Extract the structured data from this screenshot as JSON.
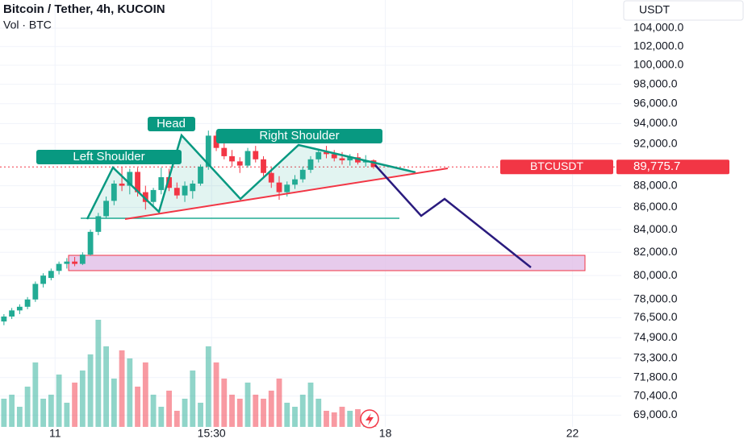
{
  "chart_data": {
    "type": "candlestick",
    "title": "Bitcoin / Tether, 4h, KUCOIN",
    "subtitle": "Vol · BTC",
    "currency": "USDT",
    "log_scale": true,
    "grid": true,
    "up_color": "#22ab94",
    "down_color": "#f23645",
    "x": [
      0,
      1,
      2,
      3,
      4,
      5,
      6,
      7,
      8,
      9,
      10,
      11,
      12,
      13,
      14,
      15,
      16,
      17,
      18,
      19,
      20,
      21,
      22,
      23,
      24,
      25,
      26,
      27,
      28,
      29,
      30,
      31,
      32,
      33,
      34,
      35,
      36,
      37,
      38,
      39,
      40,
      41,
      42,
      43,
      44,
      45,
      46,
      47
    ],
    "open": [
      76200,
      76600,
      77100,
      77400,
      78000,
      79300,
      79800,
      80400,
      81000,
      81200,
      81000,
      81800,
      83800,
      85200,
      86600,
      88200,
      88000,
      89300,
      87400,
      86500,
      87600,
      88800,
      87800,
      87100,
      87500,
      88200,
      89800,
      92800,
      91600,
      90800,
      90300,
      89900,
      91300,
      90500,
      89200,
      88300,
      87400,
      88100,
      88600,
      89500,
      90500,
      91200,
      91000,
      90600,
      90400,
      90700,
      90200,
      90400
    ],
    "high": [
      76800,
      77300,
      77600,
      78200,
      79500,
      80200,
      80600,
      81200,
      81500,
      81600,
      82000,
      84000,
      85500,
      87000,
      88500,
      89800,
      89600,
      89700,
      88000,
      87800,
      89700,
      89600,
      88300,
      88400,
      88500,
      90000,
      93300,
      93200,
      92200,
      91400,
      90700,
      91600,
      91800,
      90800,
      89700,
      88900,
      88400,
      89000,
      89800,
      90800,
      91500,
      91800,
      91400,
      91200,
      91000,
      91100,
      90900,
      90500
    ],
    "low": [
      75900,
      76400,
      76800,
      77200,
      77800,
      79000,
      79600,
      80100,
      80600,
      80800,
      80900,
      81700,
      83500,
      85000,
      86200,
      87500,
      87200,
      87000,
      85800,
      86000,
      87200,
      87500,
      86800,
      86500,
      86800,
      88000,
      89500,
      91300,
      90500,
      89800,
      89200,
      89700,
      90200,
      88900,
      87800,
      86700,
      87000,
      87700,
      88300,
      89200,
      90200,
      90600,
      90300,
      90000,
      89900,
      90000,
      89800,
      89600
    ],
    "close": [
      76600,
      77100,
      77400,
      78000,
      79300,
      80000,
      80400,
      81000,
      81200,
      81000,
      81800,
      83800,
      85200,
      86600,
      88200,
      88000,
      89300,
      87400,
      86500,
      87600,
      88800,
      87800,
      87100,
      88000,
      88200,
      89800,
      92800,
      91600,
      90800,
      90300,
      89900,
      91300,
      90500,
      89200,
      88300,
      87400,
      88100,
      88600,
      89500,
      90500,
      91200,
      91000,
      90600,
      90400,
      90700,
      90200,
      90400,
      89775.7
    ],
    "volume": [
      1400,
      1600,
      1000,
      2000,
      3200,
      1400,
      1600,
      2600,
      1200,
      2200,
      2800,
      3600,
      5320,
      4000,
      2400,
      3800,
      3400,
      2000,
      3200,
      1600,
      1000,
      1800,
      800,
      1400,
      2800,
      1200,
      4000,
      3200,
      2400,
      1600,
      1400,
      2200,
      1600,
      1400,
      1800,
      2400,
      1200,
      1000,
      1600,
      2200,
      1400,
      800,
      720,
      1000,
      800,
      880,
      600,
      480
    ],
    "xlim": [
      -0.5,
      78.5
    ],
    "xticks": [
      {
        "value": 6.5,
        "label": "11"
      },
      {
        "value": 26.4,
        "label": "15:30"
      },
      {
        "value": 48.5,
        "label": "18"
      },
      {
        "value": 72.3,
        "label": "22"
      }
    ],
    "ylim": [
      68140,
      107160
    ],
    "yticks": [
      {
        "value": 104000,
        "label": "104,000.0"
      },
      {
        "value": 102000,
        "label": "102,000.0"
      },
      {
        "value": 100000,
        "label": "100,000.0"
      },
      {
        "value": 98000,
        "label": "98,000.0"
      },
      {
        "value": 96000,
        "label": "96,000.0"
      },
      {
        "value": 94000,
        "label": "94,000.0"
      },
      {
        "value": 92000,
        "label": "92,000.0"
      },
      {
        "value": 88000,
        "label": "88,000.0"
      },
      {
        "value": 86000,
        "label": "86,000.0"
      },
      {
        "value": 84000,
        "label": "84,000.0"
      },
      {
        "value": 82000,
        "label": "82,000.0"
      },
      {
        "value": 80000,
        "label": "80,000.0"
      },
      {
        "value": 78000,
        "label": "78,000.0"
      },
      {
        "value": 76500,
        "label": "76,500.0"
      },
      {
        "value": 74900,
        "label": "74,900.0"
      },
      {
        "value": 73300,
        "label": "73,300.0"
      },
      {
        "value": 71800,
        "label": "71,800.0"
      },
      {
        "value": 70400,
        "label": "70,400.0"
      },
      {
        "value": 69000,
        "label": "69,000.0"
      }
    ],
    "last_price": {
      "name": "BTCUSDT",
      "value": 89775.7,
      "value_label": "89,775.7"
    },
    "annotations": [
      "Left Shoulder",
      "Head",
      "Right Shoulder"
    ]
  }
}
